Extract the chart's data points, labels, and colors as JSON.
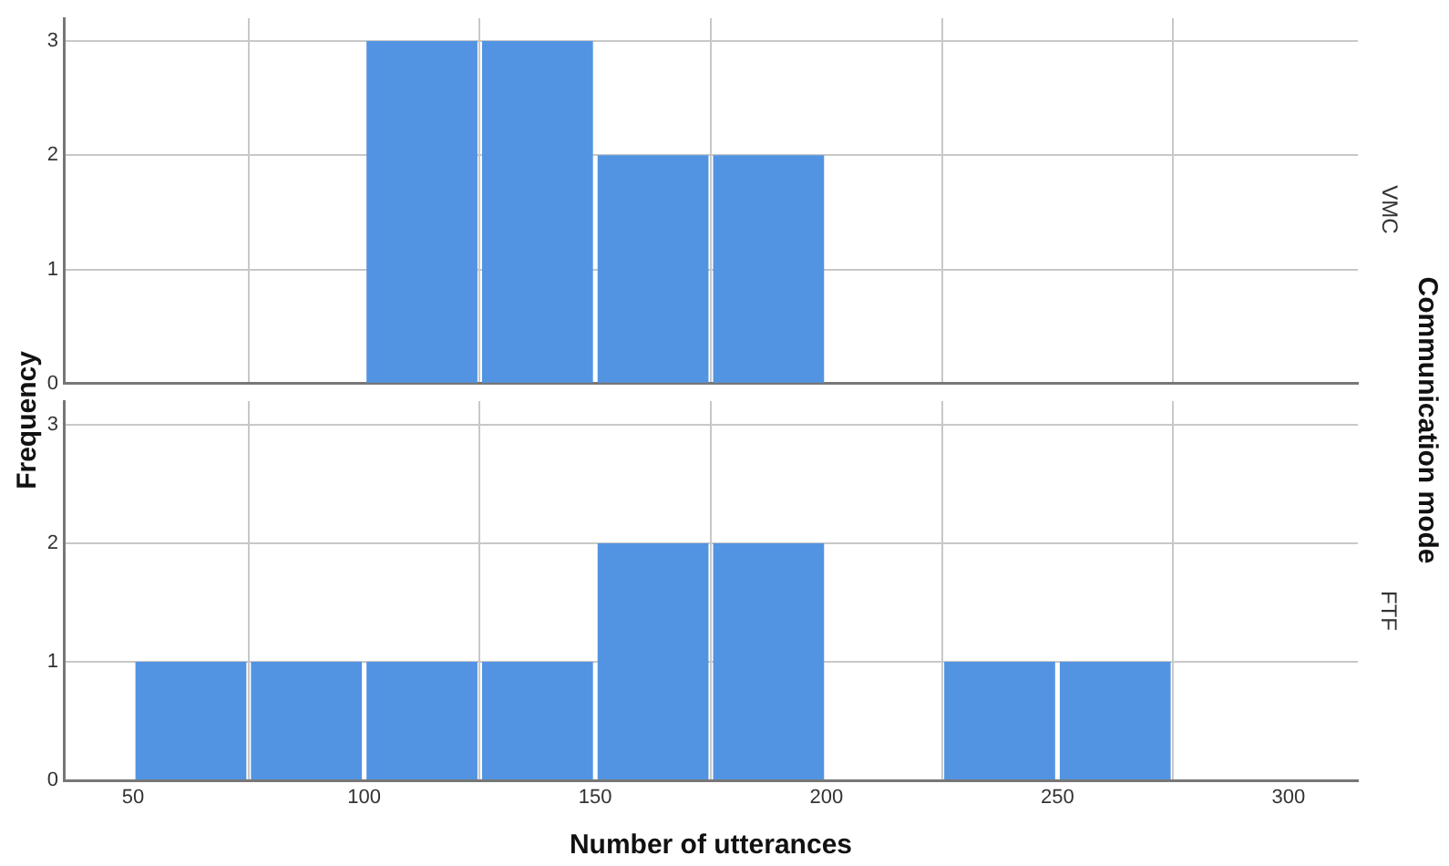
{
  "chart_data": [
    {
      "type": "histogram",
      "ylabel": "Frequency",
      "annotations": [
        "VMC",
        "Communication mode"
      ],
      "bins": [
        50,
        75,
        100,
        125,
        150,
        175,
        200,
        225,
        250,
        275,
        300
      ],
      "values": [
        0,
        0,
        3,
        3,
        2,
        2,
        0,
        0,
        0,
        0
      ],
      "color": "#5294e2",
      "xlim": [
        35,
        315
      ],
      "xticks": [
        50,
        100,
        150,
        200,
        250,
        300
      ],
      "ylim": [
        0,
        3.2
      ],
      "yticks": [
        0,
        1,
        2,
        3
      ],
      "grid": true,
      "tick_labels": "y"
    },
    {
      "type": "histogram",
      "xlabel": "Number of utterances",
      "annotations": [
        "FTF"
      ],
      "bins": [
        50,
        75,
        100,
        125,
        150,
        175,
        200,
        225,
        250,
        275,
        300
      ],
      "values": [
        1,
        1,
        1,
        1,
        2,
        2,
        0,
        1,
        1,
        0
      ],
      "color": "#5294e2",
      "xlim": [
        35,
        315
      ],
      "xticks": [
        50,
        100,
        150,
        200,
        250,
        300
      ],
      "ylim": [
        0,
        3.2
      ],
      "yticks": [
        0,
        1,
        2,
        3
      ],
      "grid": true
    }
  ]
}
